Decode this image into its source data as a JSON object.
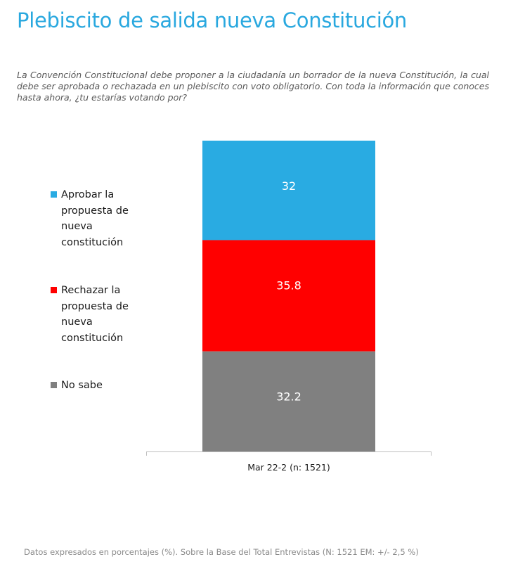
{
  "header": {
    "title": "Plebiscito de salida nueva Constitución",
    "question": "La Convención Constitucional debe proponer a la ciudadanía un borrador de la nueva Constitución, la cual debe ser aprobada o rechazada en un plebiscito con voto obligatorio. Con toda la información que conoces hasta ahora, ¿tu estarías votando por?"
  },
  "chart_data": {
    "type": "bar",
    "stacked": true,
    "categories": [
      "Mar 22-2 (n: 1521)"
    ],
    "series": [
      {
        "name": "Aprobar la propuesta de nueva constitución",
        "values": [
          32
        ],
        "color": "#29abe2"
      },
      {
        "name": "Rechazar la propuesta de nueva constitución",
        "values": [
          35.8
        ],
        "color": "#ff0000"
      },
      {
        "name": "No sabe",
        "values": [
          32.2
        ],
        "color": "#808080"
      }
    ],
    "data_labels": [
      "32",
      "35.8",
      "32.2"
    ],
    "ylim": [
      0,
      100
    ],
    "legend_position": "left",
    "grid": false
  },
  "legend": {
    "items": [
      {
        "label": "Aprobar la propuesta de nueva constitución",
        "color": "#29abe2"
      },
      {
        "label": "Rechazar la propuesta de nueva constitución",
        "color": "#ff0000"
      },
      {
        "label": "No sabe",
        "color": "#808080"
      }
    ]
  },
  "footer": {
    "note": "Datos expresados en porcentajes (%). Sobre la Base del Total Entrevistas (N: 1521  EM: +/- 2,5 %)"
  }
}
